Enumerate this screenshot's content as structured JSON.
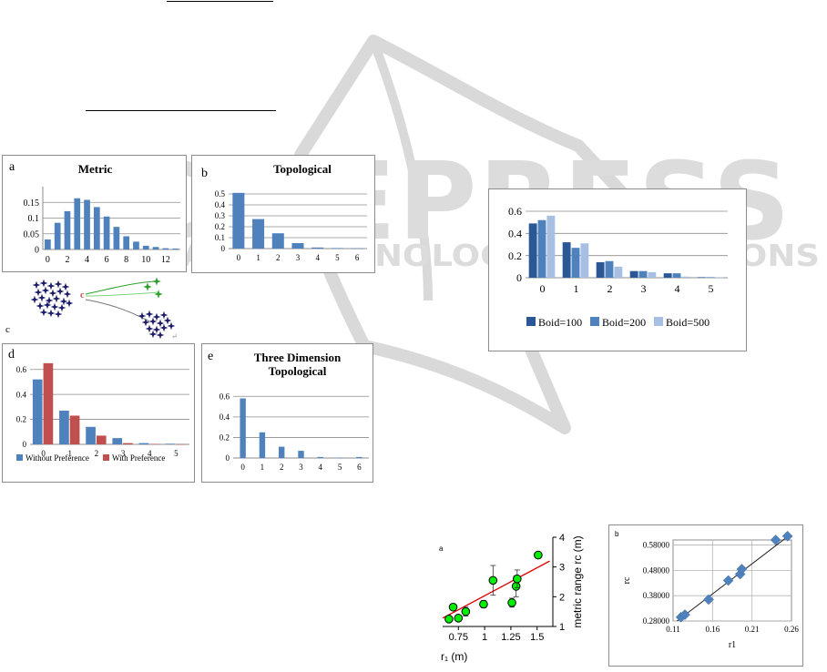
{
  "chart_data": [
    {
      "id": "metric",
      "type": "bar",
      "panel_label": "a",
      "title": "Metric",
      "ylim": [
        0,
        0.2
      ],
      "yticks": [
        0,
        0.05,
        0.1,
        0.15
      ],
      "ytick_labels": [
        "0",
        "0.05",
        "0.1",
        "0.15"
      ],
      "x": [
        0,
        1,
        2,
        3,
        4,
        5,
        6,
        7,
        8,
        9,
        10,
        11,
        12,
        13
      ],
      "xtick_labels": [
        "0",
        "",
        "2",
        "",
        "4",
        "",
        "6",
        "",
        "8",
        "",
        "10",
        "",
        "12",
        ""
      ],
      "series": [
        {
          "values": [
            0.032,
            0.085,
            0.122,
            0.163,
            0.158,
            0.135,
            0.105,
            0.072,
            0.042,
            0.025,
            0.012,
            0.008,
            0.004,
            0.003
          ]
        }
      ],
      "colors": [
        "#4f81bd"
      ]
    },
    {
      "id": "topological",
      "type": "bar",
      "panel_label": "b",
      "title": "Topological",
      "ylim": [
        0,
        0.6
      ],
      "yticks": [
        0,
        0.1,
        0.2,
        0.3,
        0.4,
        0.5
      ],
      "ytick_labels": [
        "0",
        "0.1",
        "0.2",
        "0.3",
        "0.4",
        "0.5"
      ],
      "categories": [
        "0",
        "1",
        "2",
        "3",
        "4",
        "5",
        "6"
      ],
      "series": [
        {
          "values": [
            0.51,
            0.27,
            0.14,
            0.05,
            0.01,
            0.005,
            0.002
          ]
        }
      ],
      "colors": [
        "#4f81bd"
      ]
    },
    {
      "id": "preference",
      "type": "bar",
      "panel_label": "d",
      "title": "",
      "ylim": [
        0,
        0.7
      ],
      "yticks": [
        0,
        0.2,
        0.4,
        0.6
      ],
      "ytick_labels": [
        "0",
        "0.2",
        "0.4",
        "0.6"
      ],
      "categories": [
        "0",
        "1",
        "2",
        "3",
        "4",
        "5"
      ],
      "series": [
        {
          "name": "Without Preference",
          "values": [
            0.52,
            0.27,
            0.14,
            0.05,
            0.01,
            0.005
          ]
        },
        {
          "name": "With Preference",
          "values": [
            0.65,
            0.23,
            0.07,
            0.01,
            0.003,
            0.001
          ]
        }
      ],
      "colors": [
        "#4f81bd",
        "#c0504d"
      ],
      "legend": "bottom"
    },
    {
      "id": "three-dim",
      "type": "bar",
      "panel_label": "e",
      "title": "Three Dimension Topological",
      "title_lines": [
        "Three Dimension",
        "Topological"
      ],
      "ylim": [
        0,
        0.7
      ],
      "yticks": [
        0,
        0.2,
        0.4,
        0.6
      ],
      "ytick_labels": [
        "0",
        "0.2",
        "0.4",
        "0.6"
      ],
      "categories": [
        "0",
        "1",
        "2",
        "3",
        "4",
        "5",
        "6"
      ],
      "series": [
        {
          "values": [
            0.58,
            0.25,
            0.11,
            0.07,
            0.01,
            0.003,
            0.01
          ]
        }
      ],
      "colors": [
        "#4f81bd"
      ]
    },
    {
      "id": "boid",
      "type": "bar",
      "title": "",
      "ylim": [
        0,
        0.6
      ],
      "yticks": [
        0,
        0.2,
        0.4,
        0.6
      ],
      "ytick_labels": [
        "0",
        "0.2",
        "0.4",
        "0.6"
      ],
      "categories": [
        "0",
        "1",
        "2",
        "3",
        "4",
        "5"
      ],
      "series": [
        {
          "name": "Boid=100",
          "values": [
            0.49,
            0.32,
            0.14,
            0.06,
            0.04,
            0.005
          ]
        },
        {
          "name": "Boid=200",
          "values": [
            0.52,
            0.27,
            0.15,
            0.06,
            0.04,
            0.005
          ]
        },
        {
          "name": "Boid=500",
          "values": [
            0.56,
            0.31,
            0.1,
            0.05,
            0.01,
            0.003
          ]
        }
      ],
      "colors": [
        "#2b5797",
        "#4f81bd",
        "#a6bfe3"
      ],
      "legend": "bottom"
    },
    {
      "id": "metric-range",
      "type": "scatter",
      "panel_label": "a",
      "xlabel": "r₁ (m)",
      "ylabel": "metric range rc (m)",
      "xlim": [
        0.6,
        1.65
      ],
      "ylim": [
        1,
        4
      ],
      "xticks": [
        0.75,
        1,
        1.25,
        1.5
      ],
      "xtick_labels": [
        "0.75",
        "1",
        "1.25",
        "1.5"
      ],
      "yticks": [
        1,
        2,
        3,
        4
      ],
      "ytick_labels": [
        "1",
        "2",
        "3",
        "4"
      ],
      "points": [
        {
          "x": 0.66,
          "y": 1.25,
          "err": 0.08
        },
        {
          "x": 0.7,
          "y": 1.65,
          "err": 0.1
        },
        {
          "x": 0.75,
          "y": 1.28,
          "err": 0.1
        },
        {
          "x": 0.82,
          "y": 1.5,
          "err": 0.15
        },
        {
          "x": 0.99,
          "y": 1.75,
          "err": 0.12
        },
        {
          "x": 1.08,
          "y": 2.55,
          "err": 0.5
        },
        {
          "x": 1.26,
          "y": 1.8,
          "err": 0.15
        },
        {
          "x": 1.3,
          "y": 2.35,
          "err": 0.35
        },
        {
          "x": 1.31,
          "y": 2.6,
          "err": 0.3
        },
        {
          "x": 1.51,
          "y": 3.4,
          "err": 0.1
        }
      ],
      "fit": {
        "x": [
          0.6,
          1.62
        ],
        "y": [
          1.28,
          3.2
        ]
      },
      "marker_color": "#00ee00",
      "fit_color": "#e00000"
    },
    {
      "id": "rc-vs-r1",
      "type": "scatter",
      "panel_label": "b",
      "xlabel": "r1",
      "ylabel": "rc",
      "xlim": [
        0.11,
        0.26
      ],
      "ylim": [
        0.28,
        0.6
      ],
      "xticks": [
        0.11,
        0.16,
        0.21,
        0.26
      ],
      "xtick_labels": [
        "0.11",
        "0.16",
        "0.21",
        "0.26"
      ],
      "yticks": [
        0.28,
        0.38,
        0.48,
        0.58
      ],
      "ytick_labels": [
        "0.28000",
        "0.38000",
        "0.48000",
        "0.58000"
      ],
      "points": [
        {
          "x": 0.12,
          "y": 0.295
        },
        {
          "x": 0.125,
          "y": 0.305
        },
        {
          "x": 0.155,
          "y": 0.365
        },
        {
          "x": 0.18,
          "y": 0.44
        },
        {
          "x": 0.195,
          "y": 0.465
        },
        {
          "x": 0.197,
          "y": 0.485
        },
        {
          "x": 0.24,
          "y": 0.6
        },
        {
          "x": 0.255,
          "y": 0.615
        }
      ],
      "fit": {
        "x": [
          0.115,
          0.258
        ],
        "y": [
          0.28,
          0.62
        ]
      },
      "marker_color": "#4f81bd"
    }
  ],
  "diagram": {
    "panel_label": "c",
    "birds_left_color": "#1d1d6e",
    "birds_green_color": "#2ea02e",
    "marker_color": "#c0504d"
  },
  "watermark": {
    "line1": "SCITEPRESS",
    "line2": "SCIENCE AND TECHNOLOGY PUBLICATIONS"
  }
}
